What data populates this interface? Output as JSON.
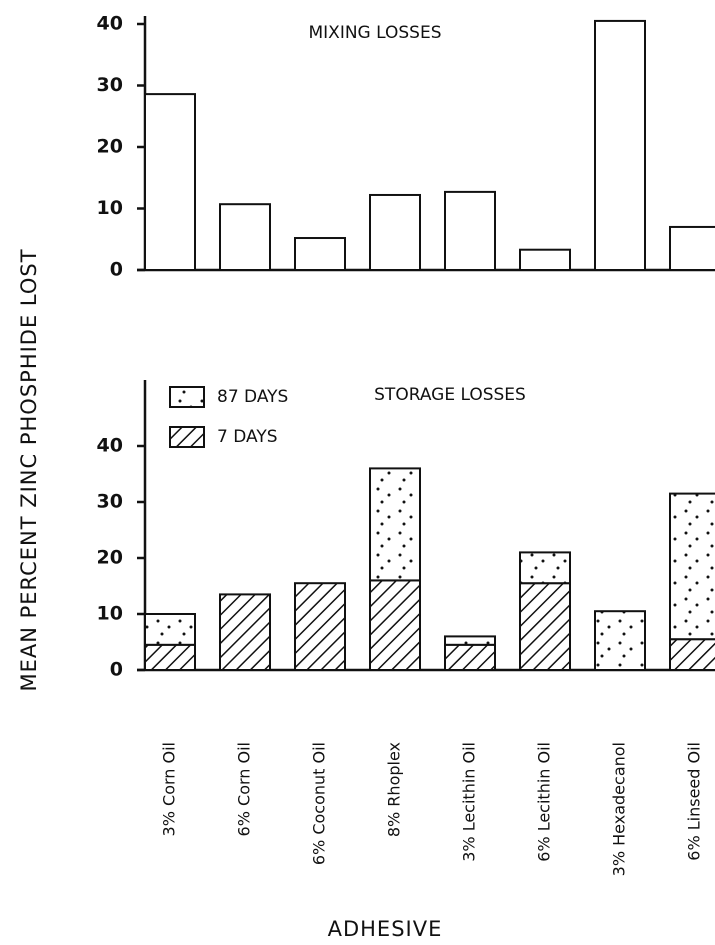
{
  "chart_data": [
    {
      "type": "bar",
      "title": "MIXING LOSSES",
      "ylabel": "MEAN PERCENT ZINC PHOSPHIDE LOST",
      "values": [
        28.6,
        10.7,
        5.2,
        12.2,
        12.7,
        3.3,
        40.5,
        7.0
      ],
      "color": "#ffffff",
      "ylim": [
        0,
        40
      ],
      "yticks": [
        0,
        10,
        20,
        30,
        40
      ]
    },
    {
      "type": "stacked_bar",
      "title": "STORAGE LOSSES",
      "xlabel": "ADHESIVE",
      "categories": [
        "3% Corn Oil",
        "6% Corn Oil",
        "6% Coconut Oil",
        "8% Rhoplex",
        "3% Lecithin Oil",
        "6% Lecithin  Oil",
        "3% Hexadecanol",
        "6% Linseed  Oil"
      ],
      "series": [
        {
          "name": "7 DAYS",
          "pattern": "hatch",
          "color": "#111111",
          "values": [
            4.5,
            13.5,
            15.5,
            16,
            4.5,
            15.5,
            0,
            5.5
          ]
        },
        {
          "name": "87 DAYS",
          "pattern": "dots",
          "color": "#111111",
          "values": [
            5.5,
            0,
            0,
            20,
            1.5,
            5.5,
            10.5,
            26
          ]
        }
      ],
      "legend": "top-left",
      "ylim": [
        0,
        50
      ],
      "yticks": [
        0,
        10,
        20,
        30,
        40
      ]
    }
  ]
}
